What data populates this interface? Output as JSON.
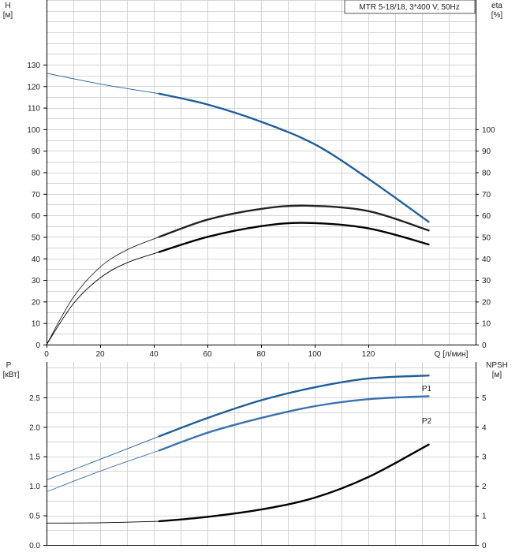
{
  "chart_data": [
    {
      "type": "line",
      "legend": "MTR 5-18/18, 3*400 V, 50Hz",
      "x_axis": {
        "label": "Q [л/мин]",
        "ticks": [
          0,
          20,
          40,
          60,
          80,
          100,
          120
        ],
        "range": [
          0,
          160
        ]
      },
      "left_axis": {
        "label_line1": "H",
        "label_line2": "[м]",
        "ticks": [
          0,
          10,
          20,
          30,
          40,
          50,
          60,
          70,
          80,
          90,
          100,
          110,
          120,
          130
        ],
        "range": [
          0,
          160
        ]
      },
      "right_axis": {
        "label_line1": "eta",
        "label_line2": "[%]",
        "ticks": [
          0,
          10,
          20,
          30,
          40,
          50,
          60,
          70,
          80,
          90,
          100
        ],
        "range": [
          0,
          160
        ]
      },
      "grid": true,
      "series": [
        {
          "key": "head",
          "color": "#1f5d99",
          "x": [
            0,
            20,
            42,
            60,
            80,
            100,
            120,
            142.5
          ],
          "y": [
            126,
            121,
            116.5,
            111.5,
            103.5,
            93,
            77,
            57
          ],
          "duty_range": [
            42,
            142.5
          ]
        },
        {
          "key": "eta_upper",
          "color": "#222222",
          "x": [
            0,
            10,
            20,
            30,
            42,
            60,
            80,
            97,
            120,
            142.5
          ],
          "y": [
            0,
            22,
            36,
            44,
            50,
            58,
            63,
            64.5,
            62,
            53
          ],
          "duty_range": [
            42,
            142.5
          ]
        },
        {
          "key": "eta_lower",
          "color": "#000000",
          "x": [
            0,
            10,
            20,
            30,
            42,
            60,
            80,
            97,
            120,
            142.5
          ],
          "y": [
            0,
            19,
            31,
            38,
            43,
            50,
            55,
            56.5,
            54,
            46.5
          ],
          "duty_range": [
            42,
            142.5
          ]
        }
      ]
    },
    {
      "type": "line",
      "x_axis": {
        "range": [
          0,
          160
        ]
      },
      "left_axis": {
        "label_line1": "P",
        "label_line2": "[кВт]",
        "ticks": [
          "0.0",
          "0.5",
          "1.0",
          "1.5",
          "2.0",
          "2.5"
        ],
        "range": [
          0,
          3.1
        ]
      },
      "right_axis": {
        "label_line1": "NPSH",
        "label_line2": "[м]",
        "ticks": [
          "0",
          "1",
          "2",
          "3",
          "4",
          "5"
        ],
        "range": [
          0,
          6.2
        ]
      },
      "grid": true,
      "series": [
        {
          "key": "P1",
          "name": "P1",
          "axis": "left",
          "color": "#1f5d99",
          "x": [
            0,
            20,
            42,
            60,
            80,
            100,
            120,
            142.5
          ],
          "y": [
            1.1,
            1.45,
            1.84,
            2.15,
            2.45,
            2.67,
            2.82,
            2.87
          ],
          "duty_range": [
            42,
            142.5
          ]
        },
        {
          "key": "P2",
          "name": "P2",
          "axis": "left",
          "color": "#3a73b0",
          "x": [
            0,
            20,
            42,
            60,
            80,
            100,
            120,
            142.5
          ],
          "y": [
            0.9,
            1.25,
            1.6,
            1.9,
            2.15,
            2.35,
            2.47,
            2.52
          ],
          "duty_range": [
            42,
            142.5
          ]
        },
        {
          "key": "NPSH",
          "axis": "right",
          "color": "#000000",
          "x": [
            0,
            20,
            42,
            60,
            80,
            100,
            120,
            142.5
          ],
          "y": [
            0.74,
            0.75,
            0.8,
            0.95,
            1.2,
            1.6,
            2.3,
            3.4
          ],
          "duty_range": [
            42,
            142.5
          ]
        }
      ]
    }
  ]
}
